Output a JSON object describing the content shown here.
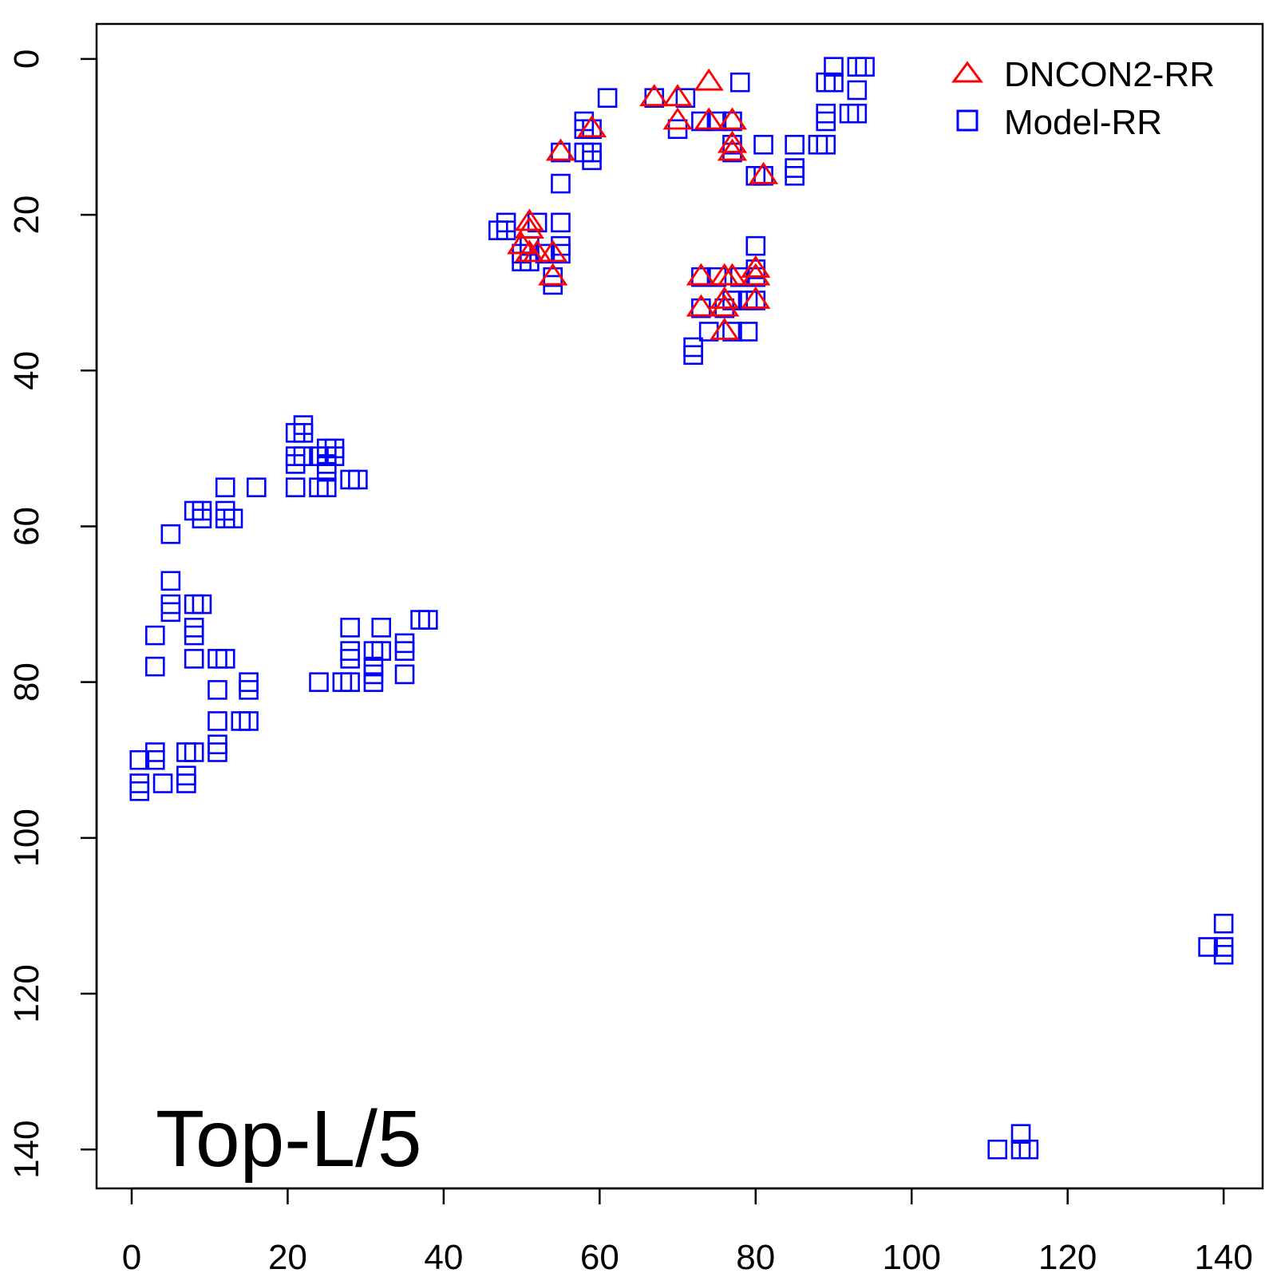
{
  "chart_data": {
    "type": "scatter",
    "title": "",
    "xlabel": "",
    "ylabel": "",
    "xlim": [
      -4.5,
      145
    ],
    "ylim": [
      145,
      -4.5
    ],
    "y_axis_inverted": true,
    "x_ticks": [
      "0",
      "20",
      "40",
      "60",
      "80",
      "100",
      "120",
      "140"
    ],
    "y_ticks": [
      "0",
      "20",
      "40",
      "60",
      "80",
      "100",
      "120",
      "140"
    ],
    "grid": false,
    "legend_position": "top-right",
    "annotation": "Top-L/5",
    "series": [
      {
        "name": "DNCON2-RR",
        "marker": "triangle",
        "color": "#ff0000",
        "points": [
          [
            51,
            21
          ],
          [
            51,
            22
          ],
          [
            50,
            24
          ],
          [
            51,
            25
          ],
          [
            52,
            25
          ],
          [
            54,
            25
          ],
          [
            54,
            28
          ],
          [
            55,
            12
          ],
          [
            59,
            9
          ],
          [
            67,
            5
          ],
          [
            70,
            5
          ],
          [
            70,
            8
          ],
          [
            74,
            3
          ],
          [
            74,
            8
          ],
          [
            77,
            8
          ],
          [
            77,
            11
          ],
          [
            77,
            12
          ],
          [
            81,
            15
          ],
          [
            73,
            28
          ],
          [
            73,
            32
          ],
          [
            76,
            28
          ],
          [
            77,
            28
          ],
          [
            76,
            31
          ],
          [
            76,
            32
          ],
          [
            76,
            35
          ],
          [
            80,
            27
          ],
          [
            80,
            28
          ],
          [
            80,
            31
          ]
        ]
      },
      {
        "name": "Model-RR",
        "marker": "square",
        "color": "#0000ff",
        "points": [
          [
            90,
            1
          ],
          [
            93,
            1
          ],
          [
            94,
            1
          ],
          [
            89,
            3
          ],
          [
            90,
            3
          ],
          [
            93,
            4
          ],
          [
            89,
            7
          ],
          [
            92,
            7
          ],
          [
            93,
            7
          ],
          [
            89,
            8
          ],
          [
            88,
            11
          ],
          [
            89,
            11
          ],
          [
            78,
            3
          ],
          [
            81,
            11
          ],
          [
            85,
            11
          ],
          [
            80,
            15
          ],
          [
            81,
            15
          ],
          [
            85,
            14
          ],
          [
            85,
            15
          ],
          [
            61,
            5
          ],
          [
            67,
            5
          ],
          [
            71,
            5
          ],
          [
            70,
            9
          ],
          [
            73,
            8
          ],
          [
            75,
            8
          ],
          [
            77,
            8
          ],
          [
            77,
            11
          ],
          [
            77,
            12
          ],
          [
            58,
            8
          ],
          [
            58,
            9
          ],
          [
            59,
            9
          ],
          [
            58,
            12
          ],
          [
            59,
            12
          ],
          [
            59,
            13
          ],
          [
            55,
            12
          ],
          [
            55,
            16
          ],
          [
            47,
            22
          ],
          [
            48,
            21
          ],
          [
            48,
            22
          ],
          [
            50,
            25
          ],
          [
            50,
            26
          ],
          [
            51,
            26
          ],
          [
            52,
            21
          ],
          [
            51,
            24
          ],
          [
            55,
            21
          ],
          [
            55,
            24
          ],
          [
            55,
            25
          ],
          [
            53,
            25
          ],
          [
            54,
            28
          ],
          [
            54,
            29
          ],
          [
            72,
            37
          ],
          [
            72,
            38
          ],
          [
            73,
            28
          ],
          [
            73,
            32
          ],
          [
            75,
            28
          ],
          [
            74,
            35
          ],
          [
            76,
            32
          ],
          [
            77,
            35
          ],
          [
            77,
            31
          ],
          [
            78,
            28
          ],
          [
            79,
            31
          ],
          [
            80,
            31
          ],
          [
            80,
            28
          ],
          [
            80,
            24
          ],
          [
            80,
            27
          ],
          [
            79,
            35
          ],
          [
            21,
            48
          ],
          [
            22,
            47
          ],
          [
            22,
            48
          ],
          [
            21,
            51
          ],
          [
            22,
            51
          ],
          [
            21,
            52
          ],
          [
            24,
            51
          ],
          [
            25,
            51
          ],
          [
            25,
            50
          ],
          [
            26,
            50
          ],
          [
            26,
            51
          ],
          [
            25,
            52
          ],
          [
            25,
            53
          ],
          [
            21,
            55
          ],
          [
            24,
            55
          ],
          [
            25,
            55
          ],
          [
            28,
            54
          ],
          [
            29,
            54
          ],
          [
            16,
            55
          ],
          [
            12,
            55
          ],
          [
            8,
            58
          ],
          [
            9,
            58
          ],
          [
            9,
            59
          ],
          [
            12,
            58
          ],
          [
            12,
            59
          ],
          [
            13,
            59
          ],
          [
            5,
            61
          ],
          [
            5,
            67
          ],
          [
            5,
            70
          ],
          [
            5,
            71
          ],
          [
            8,
            70
          ],
          [
            9,
            70
          ],
          [
            8,
            73
          ],
          [
            8,
            74
          ],
          [
            8,
            77
          ],
          [
            3,
            74
          ],
          [
            3,
            78
          ],
          [
            11,
            77
          ],
          [
            12,
            77
          ],
          [
            11,
            81
          ],
          [
            15,
            80
          ],
          [
            15,
            81
          ],
          [
            11,
            85
          ],
          [
            14,
            85
          ],
          [
            15,
            85
          ],
          [
            11,
            88
          ],
          [
            11,
            89
          ],
          [
            1,
            90
          ],
          [
            3,
            89
          ],
          [
            3,
            90
          ],
          [
            7,
            89
          ],
          [
            8,
            89
          ],
          [
            7,
            92
          ],
          [
            7,
            93
          ],
          [
            4,
            93
          ],
          [
            1,
            93
          ],
          [
            1,
            94
          ],
          [
            24,
            80
          ],
          [
            27,
            80
          ],
          [
            28,
            80
          ],
          [
            28,
            73
          ],
          [
            28,
            76
          ],
          [
            28,
            77
          ],
          [
            31,
            76
          ],
          [
            31,
            78
          ],
          [
            31,
            79
          ],
          [
            31,
            80
          ],
          [
            32,
            73
          ],
          [
            32,
            76
          ],
          [
            35,
            75
          ],
          [
            35,
            76
          ],
          [
            35,
            79
          ],
          [
            37,
            72
          ],
          [
            38,
            72
          ],
          [
            140,
            111
          ],
          [
            138,
            114
          ],
          [
            140,
            114
          ],
          [
            140,
            115
          ],
          [
            111,
            140
          ],
          [
            114,
            138
          ],
          [
            114,
            140
          ],
          [
            115,
            140
          ]
        ]
      }
    ]
  }
}
